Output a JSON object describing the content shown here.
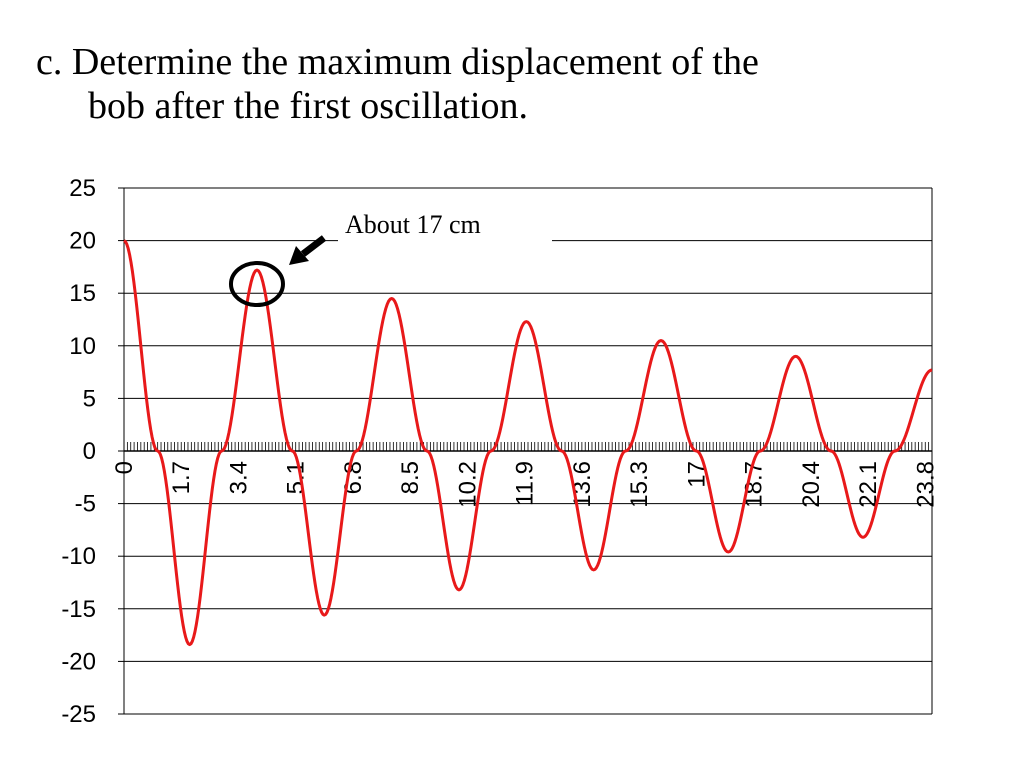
{
  "slide": {
    "title_line1": "c. Determine the maximum displacement of the",
    "title_line2": "bob after the first oscillation."
  },
  "chart_data": {
    "type": "line",
    "title": "",
    "xlabel": "",
    "ylabel": "",
    "ylim": [
      -25,
      25
    ],
    "yticks": [
      25,
      20,
      15,
      10,
      5,
      0,
      -5,
      -10,
      -15,
      -20,
      -25
    ],
    "xlim": [
      0,
      24
    ],
    "xtick_labels": [
      "0",
      "1.7",
      "3.4",
      "5.1",
      "6.8",
      "8.5",
      "10.2",
      "11.9",
      "13.6",
      "15.3",
      "17",
      "18.7",
      "20.4",
      "22.1",
      "23.8"
    ],
    "grid": "horizontal",
    "legend": "none",
    "series": [
      {
        "color": "#e8191a",
        "x": [
          0,
          1.0,
          1.95,
          2.9,
          3.95,
          5.0,
          5.95,
          6.9,
          7.95,
          9.0,
          9.95,
          10.9,
          11.95,
          13.0,
          13.95,
          14.9,
          15.95,
          17.0,
          17.95,
          18.9,
          19.95,
          21.0,
          21.95,
          22.9,
          24.0
        ],
        "y": [
          20,
          0,
          -18.4,
          0,
          17.2,
          0,
          -15.6,
          0,
          14.5,
          0,
          -13.2,
          0,
          12.3,
          0,
          -11.3,
          0,
          10.5,
          0,
          -9.6,
          0,
          9.0,
          0,
          -8.2,
          0,
          7.7
        ]
      }
    ],
    "annotation": {
      "text": "About 17 cm",
      "x": 3.95,
      "y": 17.2,
      "marker": "circle",
      "arrow": true
    }
  }
}
